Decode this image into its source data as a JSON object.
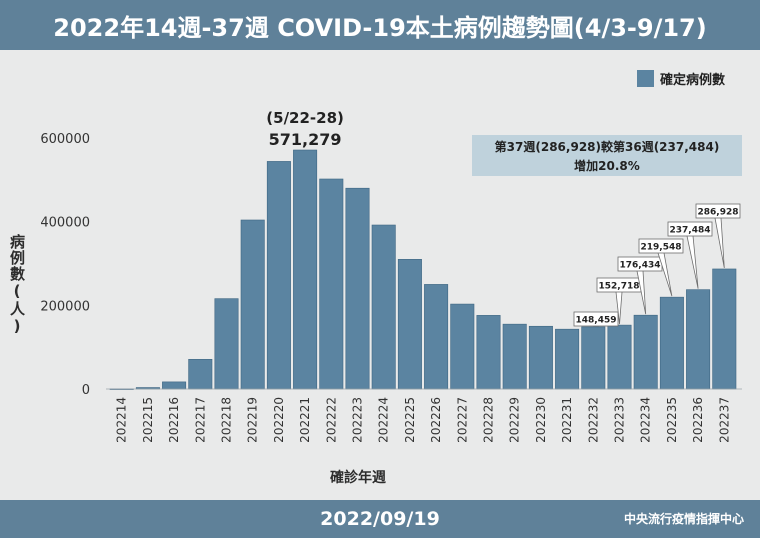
{
  "header": {
    "title": "2022年14週-37週 COVID-19本土病例趨勢圖(4/3-9/17)"
  },
  "footer": {
    "date": "2022/09/19",
    "source": "中央流行疫情指揮中心"
  },
  "colors": {
    "bar": "#5b84a1",
    "bar_stroke": "#3e6682",
    "header": "#5f8199",
    "info_box": "#bfd2dc"
  },
  "chart_data": {
    "type": "bar",
    "categories": [
      "202214",
      "202215",
      "202216",
      "202217",
      "202218",
      "202219",
      "202220",
      "202221",
      "202222",
      "202223",
      "202224",
      "202225",
      "202226",
      "202227",
      "202228",
      "202229",
      "202230",
      "202231",
      "202232",
      "202233",
      "202234",
      "202235",
      "202236",
      "202237"
    ],
    "series": [
      {
        "name": "確定病例數",
        "values": [
          200,
          3500,
          17000,
          71000,
          216000,
          404000,
          544000,
          571279,
          502000,
          480000,
          392000,
          310000,
          250000,
          203000,
          176000,
          155000,
          150000,
          143000,
          148459,
          152718,
          176434,
          219548,
          237484,
          286928
        ]
      }
    ],
    "xlabel": "確診年週",
    "ylabel": "病例數(人)",
    "ylim": [
      0,
      720000
    ],
    "yticks": [
      0,
      200000,
      400000,
      600000
    ],
    "ytick_labels": [
      "0",
      "200000",
      "400000",
      "600000"
    ],
    "legend": {
      "label": "確定病例數",
      "position": "top-right"
    },
    "grid": false,
    "peak_annotation": {
      "category": "202221",
      "line1": "(5/22-28)",
      "line2": "571,279"
    },
    "value_callouts": [
      {
        "category": "202232",
        "label": "148,459"
      },
      {
        "category": "202233",
        "label": "152,718"
      },
      {
        "category": "202234",
        "label": "176,434"
      },
      {
        "category": "202235",
        "label": "219,548"
      },
      {
        "category": "202236",
        "label": "237,484"
      },
      {
        "category": "202237",
        "label": "286,928"
      }
    ],
    "info_box": {
      "line1": "第37週(286,928)較第36週(237,484)",
      "line2": "增加20.8%"
    }
  }
}
